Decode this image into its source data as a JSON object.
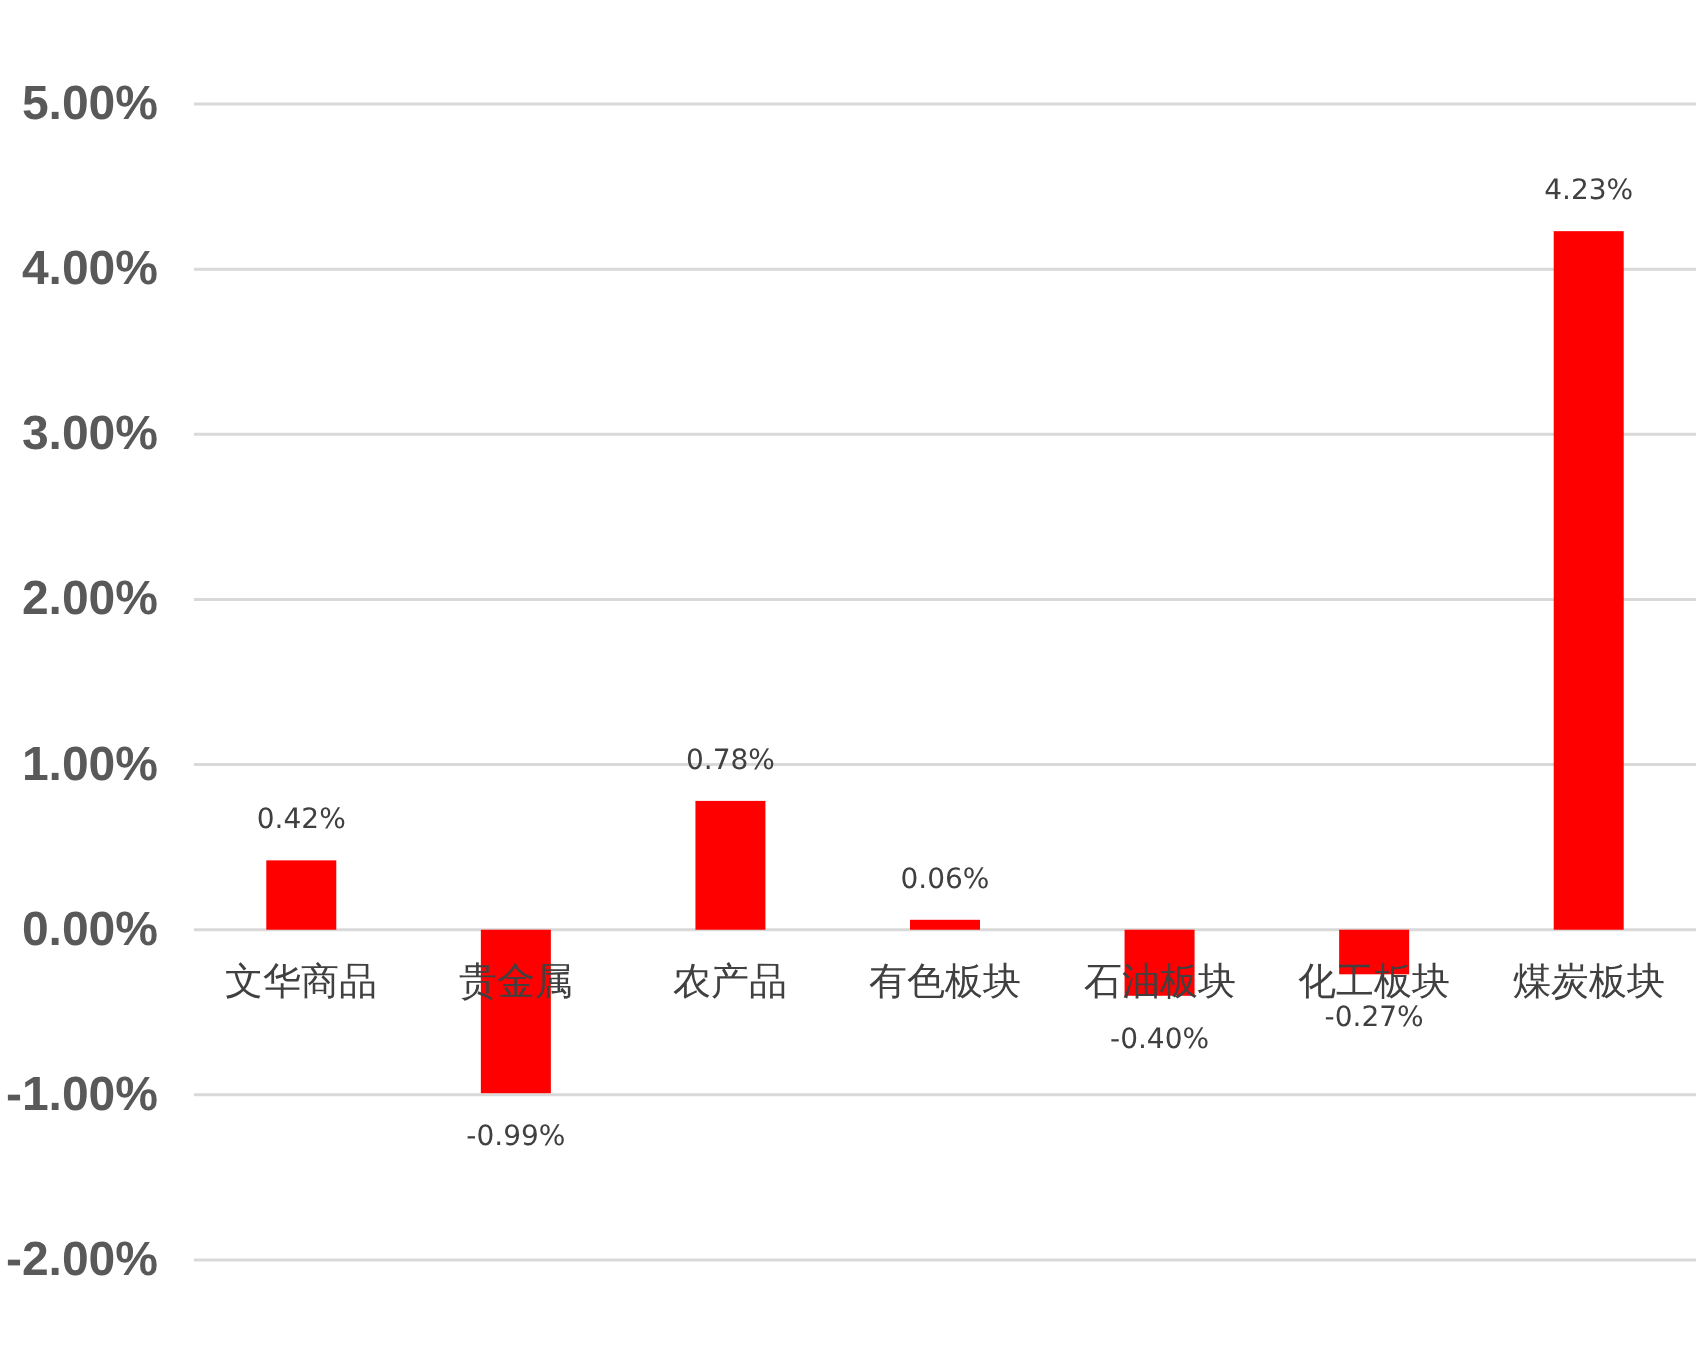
{
  "chart_data": {
    "type": "bar",
    "categories": [
      "文华商品",
      "贵金属",
      "农产品",
      "有色板块",
      "石油板块",
      "化工板块",
      "煤炭板块"
    ],
    "values": [
      0.42,
      -0.99,
      0.78,
      0.06,
      -0.4,
      -0.27,
      4.23
    ],
    "color": "#ff0000",
    "value_labels": [
      "0.42%",
      "-0.99%",
      "0.78%",
      "0.06%",
      "-0.40%",
      "-0.27%",
      "4.23%"
    ],
    "ylim": [
      -2,
      5
    ],
    "yticks": [
      {
        "value": -2,
        "label": "-2.00%"
      },
      {
        "value": -1,
        "label": "-1.00%"
      },
      {
        "value": 0,
        "label": "0.00%"
      },
      {
        "value": 1,
        "label": "1.00%"
      },
      {
        "value": 2,
        "label": "2.00%"
      },
      {
        "value": 3,
        "label": "3.00%"
      },
      {
        "value": 4,
        "label": "4.00%"
      },
      {
        "value": 5,
        "label": "5.00%"
      }
    ],
    "grid": "y"
  }
}
